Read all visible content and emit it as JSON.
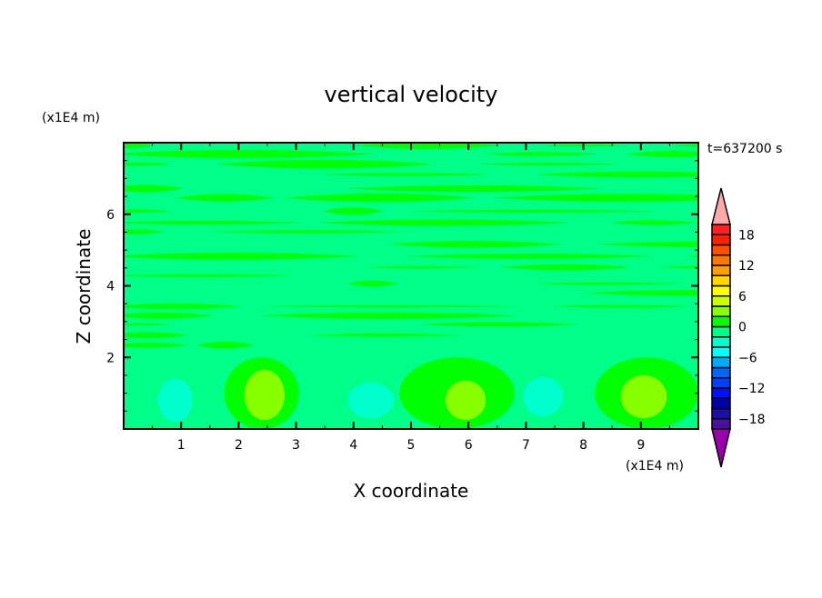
{
  "chart_data": {
    "type": "heatmap",
    "subtype": "filled-contour",
    "title": "vertical velocity",
    "xlabel": "X coordinate",
    "ylabel": "Z coordinate",
    "x_unit": "(x1E4 m)",
    "y_unit": "(x1E4 m)",
    "time_label": "t=637200 s",
    "xlim": [
      0,
      10
    ],
    "ylim": [
      0,
      8
    ],
    "xticks": [
      1,
      2,
      3,
      4,
      5,
      6,
      7,
      8,
      9
    ],
    "yticks": [
      2,
      4,
      6
    ],
    "colorbar": {
      "levels": [
        -20,
        -18,
        -16,
        -14,
        -12,
        -10,
        -8,
        -6,
        -4,
        -2,
        0,
        2,
        4,
        6,
        8,
        10,
        12,
        14,
        16,
        18,
        20
      ],
      "tick_labels": [
        "18",
        "12",
        "6",
        "0",
        "-6",
        "-12",
        "-18"
      ],
      "tick_values": [
        18,
        12,
        6,
        0,
        -6,
        -12,
        -18
      ],
      "colors": [
        "#4a10a0",
        "#1a10a8",
        "#0000b0",
        "#0010ff",
        "#0040ff",
        "#0064ff",
        "#00aaff",
        "#00ffff",
        "#00ffcc",
        "#00ff88",
        "#00ff00",
        "#88ff00",
        "#ccff00",
        "#ffff00",
        "#ffd800",
        "#ffa000",
        "#ff7800",
        "#ff5000",
        "#ff2000",
        "#ff2020"
      ],
      "over_color": "#ffaaaa",
      "under_color": "#9900aa"
    },
    "background_level": [
      -2,
      0
    ],
    "features": [
      {
        "kind": "updraft",
        "x": 2.4,
        "z": 1.0,
        "rx": 0.65,
        "rz": 1.0,
        "range": [
          0,
          2
        ]
      },
      {
        "kind": "updraft",
        "x": 5.8,
        "z": 1.0,
        "rx": 1.0,
        "rz": 1.0,
        "range": [
          0,
          2
        ]
      },
      {
        "kind": "updraft",
        "x": 9.1,
        "z": 1.0,
        "rx": 0.9,
        "rz": 1.0,
        "range": [
          0,
          2
        ]
      },
      {
        "kind": "updraft-core",
        "x": 2.45,
        "z": 0.95,
        "rx": 0.35,
        "rz": 0.7,
        "range": [
          2,
          4
        ]
      },
      {
        "kind": "updraft-core",
        "x": 5.95,
        "z": 0.8,
        "rx": 0.35,
        "rz": 0.55,
        "range": [
          2,
          4
        ]
      },
      {
        "kind": "updraft-core",
        "x": 9.05,
        "z": 0.9,
        "rx": 0.4,
        "rz": 0.6,
        "range": [
          2,
          4
        ]
      },
      {
        "kind": "downdraft",
        "x": 0.9,
        "z": 0.8,
        "rx": 0.3,
        "rz": 0.6,
        "range": [
          -4,
          -2
        ]
      },
      {
        "kind": "downdraft",
        "x": 4.3,
        "z": 0.8,
        "rx": 0.4,
        "rz": 0.5,
        "range": [
          -4,
          -2
        ]
      },
      {
        "kind": "downdraft",
        "x": 7.3,
        "z": 0.9,
        "rx": 0.35,
        "rz": 0.55,
        "range": [
          -4,
          -2
        ]
      }
    ]
  }
}
